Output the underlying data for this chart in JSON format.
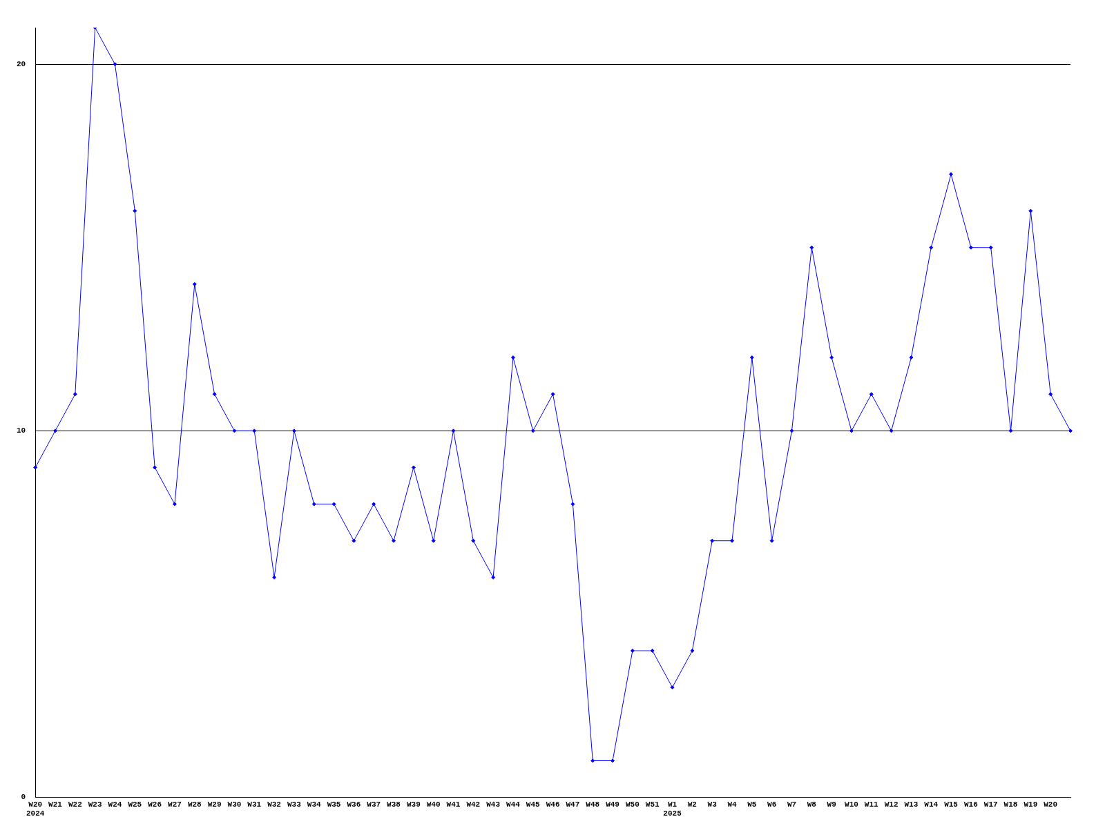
{
  "chart_data": {
    "type": "line",
    "categories": [
      "W20\n2024",
      "W21",
      "W22",
      "W23",
      "W24",
      "W25",
      "W26",
      "W27",
      "W28",
      "W29",
      "W30",
      "W31",
      "W32",
      "W33",
      "W34",
      "W35",
      "W36",
      "W37",
      "W38",
      "W39",
      "W40",
      "W41",
      "W42",
      "W43",
      "W44",
      "W45",
      "W46",
      "W47",
      "W48",
      "W49",
      "W50",
      "W51",
      "W1\n2025",
      "W2",
      "W3",
      "W4",
      "W5",
      "W6",
      "W7",
      "W8",
      "W9",
      "W10",
      "W11",
      "W12",
      "W13",
      "W14",
      "W15",
      "W16",
      "W17",
      "W18",
      "W19",
      "W20",
      null
    ],
    "series": [
      {
        "color": "#0000ff",
        "values": [
          9,
          10,
          11,
          21,
          20,
          16,
          9,
          8,
          14,
          11,
          10,
          10,
          6,
          10,
          8,
          8,
          7,
          8,
          7,
          9,
          7,
          10,
          7,
          6,
          12,
          10,
          11,
          8,
          1,
          1,
          4,
          4,
          3,
          4,
          7,
          7,
          12,
          7,
          10,
          15,
          12,
          10,
          11,
          10,
          12,
          15,
          17,
          15,
          15,
          10,
          16,
          11,
          10
        ]
      }
    ],
    "ylim": [
      0,
      21
    ],
    "yticks": [
      0,
      10,
      20
    ],
    "grid": "y",
    "legend": false,
    "marker": "diamond",
    "line_style": "solid"
  }
}
